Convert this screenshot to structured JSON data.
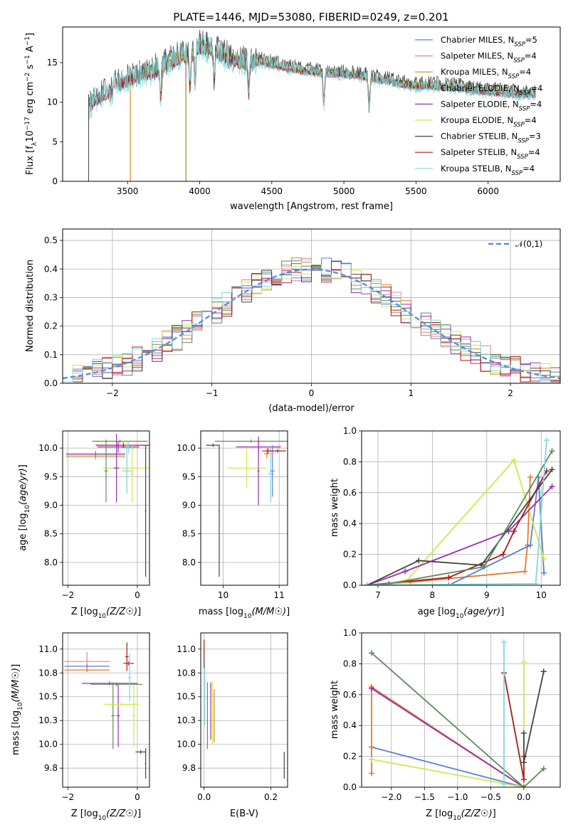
{
  "figure": {
    "title": "PLATE=1446, MJD=53080, FIBERID=0249, z=0.201"
  },
  "colors": {
    "chabrier_miles": "#5b7fdb",
    "salpeter_miles": "#e07fa6",
    "kroupa_miles": "#b59a1f",
    "chabrier_elodie": "#5d8a5f",
    "salpeter_elodie": "#9b2fae",
    "kroupa_elodie": "#cfe84a",
    "chabrier_stelib": "#444444",
    "salpeter_stelib": "#b01818",
    "kroupa_stelib": "#7fd8dc",
    "orange": "#e07b2c",
    "gaussian": "#5b8fd6",
    "grid": "#b0b0b0"
  },
  "chart_data": [
    {
      "type": "line",
      "name": "spectrum",
      "xlabel": "wavelength [Angstrom, rest frame]",
      "ylabel": "Flux [f_λ 10^-17 erg cm^-2 s^-1 A^-1]",
      "xlim": [
        3050,
        6500
      ],
      "ylim": [
        0,
        19.5
      ],
      "xticks": [
        3500,
        4000,
        4500,
        5000,
        5500,
        6000
      ],
      "yticks": [
        0,
        5,
        10,
        15
      ],
      "grid": false,
      "legend_position": "top-right",
      "legend": [
        {
          "label": "Chabrier MILES, N",
          "sub": "SSP",
          "suffix": "=5",
          "color_key": "chabrier_miles"
        },
        {
          "label": "Salpeter MILES, N",
          "sub": "SSP",
          "suffix": "=4",
          "color_key": "salpeter_miles"
        },
        {
          "label": "Kroupa MILES, N",
          "sub": "SSP",
          "suffix": "=4",
          "color_key": "kroupa_miles"
        },
        {
          "label": "Chabrier ELODIE, N",
          "sub": "SSP",
          "suffix": "=4",
          "color_key": "chabrier_elodie"
        },
        {
          "label": "Salpeter ELODIE, N",
          "sub": "SSP",
          "suffix": "=4",
          "color_key": "salpeter_elodie"
        },
        {
          "label": "Kroupa ELODIE, N",
          "sub": "SSP",
          "suffix": "=4",
          "color_key": "kroupa_elodie"
        },
        {
          "label": "Chabrier STELIB, N",
          "sub": "SSP",
          "suffix": "=3",
          "color_key": "chabrier_stelib"
        },
        {
          "label": "Salpeter STELIB, N",
          "sub": "SSP",
          "suffix": "=4",
          "color_key": "salpeter_stelib"
        },
        {
          "label": "Kroupa STELIB, N",
          "sub": "SSP",
          "suffix": "=4",
          "color_key": "kroupa_stelib"
        }
      ],
      "data_profile": {
        "x": [
          3230,
          3300,
          3400,
          3500,
          3600,
          3700,
          3800,
          3850,
          3900,
          3950,
          4000,
          4050,
          4100,
          4200,
          4300,
          4400,
          4500,
          4600,
          4700,
          4800,
          4900,
          5000,
          5100,
          5200,
          5300,
          5400,
          5500,
          5600,
          5700,
          5800,
          5900,
          6000,
          6100,
          6200,
          6330
        ],
        "y": [
          10.5,
          12.0,
          12.5,
          12.8,
          13.5,
          14.0,
          15.0,
          15.5,
          15.8,
          16.0,
          17.0,
          16.8,
          16.5,
          15.5,
          15.0,
          15.2,
          14.8,
          14.3,
          14.0,
          13.8,
          13.7,
          13.5,
          13.4,
          13.0,
          12.7,
          12.3,
          12.0,
          12.1,
          11.9,
          11.8,
          11.5,
          11.3,
          11.2,
          11.0,
          11.0
        ]
      },
      "model_offsets": [
        0.0,
        -0.4,
        0.2,
        -0.2,
        0.3,
        0.5,
        0.8,
        -0.3,
        -0.1
      ],
      "dips": [
        3730,
        3933,
        3968,
        4101,
        4340,
        4861,
        5175
      ],
      "spike_wavelengths": [
        3520,
        3905
      ]
    },
    {
      "type": "step",
      "name": "residual-histogram",
      "xlabel": "(data-model)/error",
      "ylabel": "Normed distribution",
      "xlim": [
        -2.5,
        2.5
      ],
      "ylim": [
        0,
        0.54
      ],
      "xticks": [
        -2,
        -1,
        0,
        1,
        2
      ],
      "yticks": [
        0.0,
        0.1,
        0.2,
        0.3,
        0.4,
        0.5
      ],
      "grid": true,
      "legend_label": "𝒩(0,1)",
      "legend_position": "top-right",
      "bin_width": 0.1,
      "bin_start": -2.5,
      "gaussian_sigma": 1,
      "series_colors": [
        "chabrier_miles",
        "salpeter_miles",
        "orange",
        "chabrier_elodie",
        "salpeter_elodie",
        "kroupa_elodie",
        "chabrier_stelib",
        "salpeter_stelib",
        "kroupa_stelib"
      ],
      "noise_seed": 7
    },
    {
      "type": "errorbar",
      "name": "Z-vs-age",
      "xlabel": "Z [log10(Z/Z☉)]",
      "ylabel": "age  [log10(age/yr)]",
      "xlim": [
        -2.15,
        0.35
      ],
      "ylim": [
        7.6,
        10.3
      ],
      "xticks": [
        -2,
        0
      ],
      "yticks": [
        8.0,
        8.5,
        9.0,
        9.5,
        10.0
      ],
      "grid": true,
      "points": [
        {
          "x": -1.2,
          "xerr": 0.85,
          "y": 9.88,
          "yerr": 0.05,
          "color_key": "salpeter_miles"
        },
        {
          "x": -1.2,
          "xerr": 0.85,
          "y": 9.85,
          "yerr": 0.05,
          "color_key": "orange"
        },
        {
          "x": -1.2,
          "xerr": 0.85,
          "y": 9.9,
          "yerr": 0.05,
          "color_key": "chabrier_miles"
        },
        {
          "x": -0.55,
          "xerr": 0.6,
          "y": 10.02,
          "yerr": 0.1,
          "color_key": "salpeter_elodie"
        },
        {
          "x": -0.4,
          "xerr": 0.8,
          "y": 10.05,
          "yerr": 0.05,
          "color_key": "salpeter_stelib"
        },
        {
          "x": -0.25,
          "xerr": 0.2,
          "y": 10.0,
          "yerr": 0.1,
          "color_key": "kroupa_stelib"
        },
        {
          "x": -0.3,
          "xerr": 0.7,
          "y": 9.65,
          "yerr": 0.45,
          "color_key": "kroupa_elodie"
        },
        {
          "x": -0.9,
          "xerr": 0.05,
          "y": 9.6,
          "yerr": 0.55,
          "color_key": "chabrier_elodie"
        },
        {
          "x": -0.6,
          "xerr": 0.08,
          "y": 9.65,
          "yerr": 0.6,
          "color_key": "salpeter_elodie"
        },
        {
          "x": -0.15,
          "xerr": 0.05,
          "y": 9.55,
          "yerr": 0.5,
          "color_key": "kroupa_elodie"
        },
        {
          "x": -0.3,
          "xerr": 0.15,
          "y": 9.6,
          "yerr": 0.4,
          "color_key": "kroupa_stelib"
        },
        {
          "x": -0.5,
          "xerr": 0.8,
          "y": 10.12,
          "yerr": 0.03,
          "color_key": "chabrier_elodie"
        },
        {
          "x": 0.24,
          "xerr": 0.02,
          "y": 8.9,
          "yerr": 1.15,
          "color_key": "chabrier_stelib"
        }
      ]
    },
    {
      "type": "errorbar",
      "name": "mass-vs-age",
      "xlabel": "mass [log10(M/M☉)]",
      "ylabel": "",
      "xlim": [
        9.6,
        11.15
      ],
      "ylim": [
        7.6,
        10.3
      ],
      "xticks": [
        10,
        11
      ],
      "yticks": [
        8.0,
        8.5,
        9.0,
        9.5,
        10.0
      ],
      "grid": true,
      "points": [
        {
          "x": 9.82,
          "xerr": 0.12,
          "y": 10.05,
          "yerr": 0.03,
          "color_key": "chabrier_stelib"
        },
        {
          "x": 9.93,
          "xerr": 0.01,
          "y": 8.9,
          "yerr": 1.15,
          "color_key": "chabrier_stelib"
        },
        {
          "x": 10.5,
          "xerr": 0.65,
          "y": 10.12,
          "yerr": 0.03,
          "color_key": "chabrier_elodie"
        },
        {
          "x": 10.42,
          "xerr": 0.35,
          "y": 9.65,
          "yerr": 0.35,
          "color_key": "kroupa_elodie"
        },
        {
          "x": 10.63,
          "xerr": 0.02,
          "y": 9.6,
          "yerr": 0.6,
          "color_key": "salpeter_elodie"
        },
        {
          "x": 10.63,
          "xerr": 0.4,
          "y": 10.02,
          "yerr": 0.15,
          "color_key": "salpeter_elodie"
        },
        {
          "x": 10.8,
          "xerr": 0.1,
          "y": 9.95,
          "yerr": 0.05,
          "color_key": "salpeter_stelib"
        },
        {
          "x": 10.85,
          "xerr": 0.05,
          "y": 9.55,
          "yerr": 0.5,
          "color_key": "kroupa_stelib"
        },
        {
          "x": 10.88,
          "xerr": 0.04,
          "y": 9.6,
          "yerr": 0.45,
          "color_key": "chabrier_miles"
        },
        {
          "x": 10.78,
          "xerr": 0.05,
          "y": 9.9,
          "yerr": 0.08,
          "color_key": "orange"
        },
        {
          "x": 10.88,
          "xerr": 0.02,
          "y": 9.9,
          "yerr": 0.08,
          "color_key": "salpeter_miles"
        },
        {
          "x": 10.97,
          "xerr": 0.15,
          "y": 9.95,
          "yerr": 0.03,
          "color_key": "salpeter_stelib"
        }
      ]
    },
    {
      "type": "line",
      "name": "age-vs-mass-weight",
      "xlabel": "age  [log10(age/yr)]",
      "ylabel": "mass weight",
      "xlim": [
        6.7,
        10.35
      ],
      "ylim": [
        0,
        1.0
      ],
      "xticks": [
        7,
        8,
        9,
        10
      ],
      "yticks": [
        0.0,
        0.2,
        0.4,
        0.6,
        0.8,
        1.0
      ],
      "grid": true,
      "series": [
        {
          "color_key": "orange",
          "x": [
            6.8,
            7.6,
            9.7,
            9.75,
            9.8
          ],
          "y": [
            0.0,
            0.02,
            0.09,
            0.26,
            0.7
          ]
        },
        {
          "color_key": "chabrier_miles",
          "x": [
            8.3,
            9.8,
            9.95,
            10.05
          ],
          "y": [
            0.0,
            0.26,
            0.7,
            0.08
          ]
        },
        {
          "color_key": "kroupa_elodie",
          "x": [
            6.8,
            7.5,
            9.5,
            10.05
          ],
          "y": [
            0.0,
            0.02,
            0.81,
            0.17
          ]
        },
        {
          "color_key": "salpeter_elodie",
          "x": [
            6.8,
            7.5,
            9.4,
            10.2
          ],
          "y": [
            0.0,
            0.09,
            0.35,
            0.64
          ]
        },
        {
          "color_key": "salpeter_stelib",
          "x": [
            6.8,
            8.3,
            9.3,
            9.5,
            10.1
          ],
          "y": [
            0.0,
            0.05,
            0.2,
            0.35,
            0.74
          ]
        },
        {
          "color_key": "chabrier_stelib",
          "x": [
            6.8,
            7.75,
            8.9,
            10.2
          ],
          "y": [
            0.0,
            0.16,
            0.13,
            0.75
          ]
        },
        {
          "color_key": "chabrier_elodie",
          "x": [
            6.8,
            7.2,
            8.95,
            10.2
          ],
          "y": [
            0.0,
            0.01,
            0.12,
            0.87
          ]
        },
        {
          "color_key": "kroupa_stelib",
          "x": [
            6.8,
            9.9,
            10.1
          ],
          "y": [
            0.0,
            0.01,
            0.94
          ]
        }
      ]
    },
    {
      "type": "errorbar",
      "name": "Z-vs-mass",
      "xlabel": "Z [log10(Z/Z☉)]",
      "ylabel": "mass [log10(M/M☉)]",
      "xlim": [
        -2.15,
        0.35
      ],
      "ylim": [
        9.55,
        11.17
      ],
      "xticks": [
        -2,
        0
      ],
      "yticks": [
        9.75,
        10.0,
        10.25,
        10.5,
        10.75,
        11.0
      ],
      "grid": true,
      "points": [
        {
          "x": -1.45,
          "xerr": 0.65,
          "y": 10.87,
          "yerr": 0.1,
          "color_key": "salpeter_miles"
        },
        {
          "x": -1.45,
          "xerr": 0.65,
          "y": 10.82,
          "yerr": 0.02,
          "color_key": "chabrier_miles"
        },
        {
          "x": -1.45,
          "xerr": 0.65,
          "y": 10.78,
          "yerr": 0.02,
          "color_key": "orange"
        },
        {
          "x": -0.8,
          "xerr": 0.8,
          "y": 10.64,
          "yerr": 0.02,
          "color_key": "salpeter_elodie"
        },
        {
          "x": -0.6,
          "xerr": 0.75,
          "y": 10.63,
          "yerr": 0.02,
          "color_key": "chabrier_elodie"
        },
        {
          "x": -0.7,
          "xerr": 0.05,
          "y": 10.3,
          "yerr": 0.35,
          "color_key": "chabrier_elodie"
        },
        {
          "x": -0.55,
          "xerr": 0.05,
          "y": 10.3,
          "yerr": 0.33,
          "color_key": "salpeter_elodie"
        },
        {
          "x": -0.45,
          "xerr": 0.5,
          "y": 10.42,
          "yerr": 0.02,
          "color_key": "kroupa_elodie"
        },
        {
          "x": -0.3,
          "xerr": 0.05,
          "y": 10.92,
          "yerr": 0.15,
          "color_key": "salpeter_stelib"
        },
        {
          "x": -0.25,
          "xerr": 0.15,
          "y": 10.85,
          "yerr": 0.02,
          "color_key": "salpeter_stelib"
        },
        {
          "x": -0.22,
          "xerr": 0.04,
          "y": 10.7,
          "yerr": 0.25,
          "color_key": "kroupa_stelib"
        },
        {
          "x": -0.1,
          "xerr": 0.05,
          "y": 10.3,
          "yerr": 0.33,
          "color_key": "kroupa_elodie"
        },
        {
          "x": 0.1,
          "xerr": 0.15,
          "y": 9.92,
          "yerr": 0.02,
          "color_key": "chabrier_stelib"
        },
        {
          "x": 0.24,
          "xerr": 0.02,
          "y": 9.8,
          "yerr": 0.16,
          "color_key": "chabrier_stelib"
        }
      ]
    },
    {
      "type": "errorbar",
      "name": "EBV-vs-mass",
      "xlabel": "E(B-V)",
      "ylabel": "",
      "xlim": [
        -0.01,
        0.25
      ],
      "ylim": [
        9.55,
        11.17
      ],
      "xticks": [
        0.0,
        0.2
      ],
      "yticks": [
        9.75,
        10.0,
        10.25,
        10.5,
        10.75,
        11.0
      ],
      "grid": true,
      "points": [
        {
          "x": 0.0,
          "y": 10.95,
          "yerr": 0.15,
          "color_key": "salpeter_stelib"
        },
        {
          "x": 0.002,
          "y": 10.55,
          "yerr": 0.35,
          "color_key": "kroupa_stelib"
        },
        {
          "x": 0.01,
          "y": 10.3,
          "yerr": 0.35,
          "color_key": "chabrier_elodie"
        },
        {
          "x": 0.02,
          "y": 10.35,
          "yerr": 0.3,
          "color_key": "salpeter_elodie"
        },
        {
          "x": 0.025,
          "y": 10.33,
          "yerr": 0.33,
          "color_key": "kroupa_elodie"
        },
        {
          "x": 0.03,
          "y": 10.3,
          "yerr": 0.28,
          "color_key": "orange"
        },
        {
          "x": 0.24,
          "y": 9.78,
          "yerr": 0.14,
          "color_key": "chabrier_stelib"
        }
      ]
    },
    {
      "type": "line",
      "name": "Z-vs-mass-weight",
      "xlabel": "Z [log10(Z/Z☉)]",
      "ylabel": "mass weight",
      "xlim": [
        -2.45,
        0.55
      ],
      "ylim": [
        0,
        1.0
      ],
      "xticks": [
        -2.0,
        -1.5,
        -1.0,
        -0.5,
        0.0
      ],
      "yticks": [
        0.0,
        0.2,
        0.4,
        0.6,
        0.8,
        1.0
      ],
      "grid": true,
      "series": [
        {
          "color_key": "chabrier_miles",
          "x": [
            -2.3,
            0.0
          ],
          "y": [
            0.26,
            0.0
          ]
        },
        {
          "color_key": "orange",
          "x": [
            -2.3,
            -2.3,
            -2.3,
            0.0
          ],
          "y": [
            0.09,
            0.26,
            0.65,
            0.0
          ]
        },
        {
          "color_key": "salpeter_elodie",
          "x": [
            -2.3,
            0.0
          ],
          "y": [
            0.64,
            0.0
          ]
        },
        {
          "color_key": "kroupa_elodie",
          "x": [
            -2.3,
            0.0,
            0.0
          ],
          "y": [
            0.18,
            0.0,
            0.81
          ]
        },
        {
          "color_key": "chabrier_elodie",
          "x": [
            -2.3,
            0.0,
            0.3
          ],
          "y": [
            0.87,
            0.0,
            0.12
          ]
        },
        {
          "color_key": "salpeter_stelib",
          "x": [
            -0.3,
            0.0,
            0.0
          ],
          "y": [
            0.74,
            0.05,
            0.2
          ]
        },
        {
          "color_key": "chabrier_stelib",
          "x": [
            0.0,
            0.0,
            0.3
          ],
          "y": [
            0.35,
            0.16,
            0.75
          ]
        },
        {
          "color_key": "kroupa_stelib",
          "x": [
            -0.3,
            -0.3
          ],
          "y": [
            0.94,
            0.02
          ]
        }
      ]
    }
  ]
}
